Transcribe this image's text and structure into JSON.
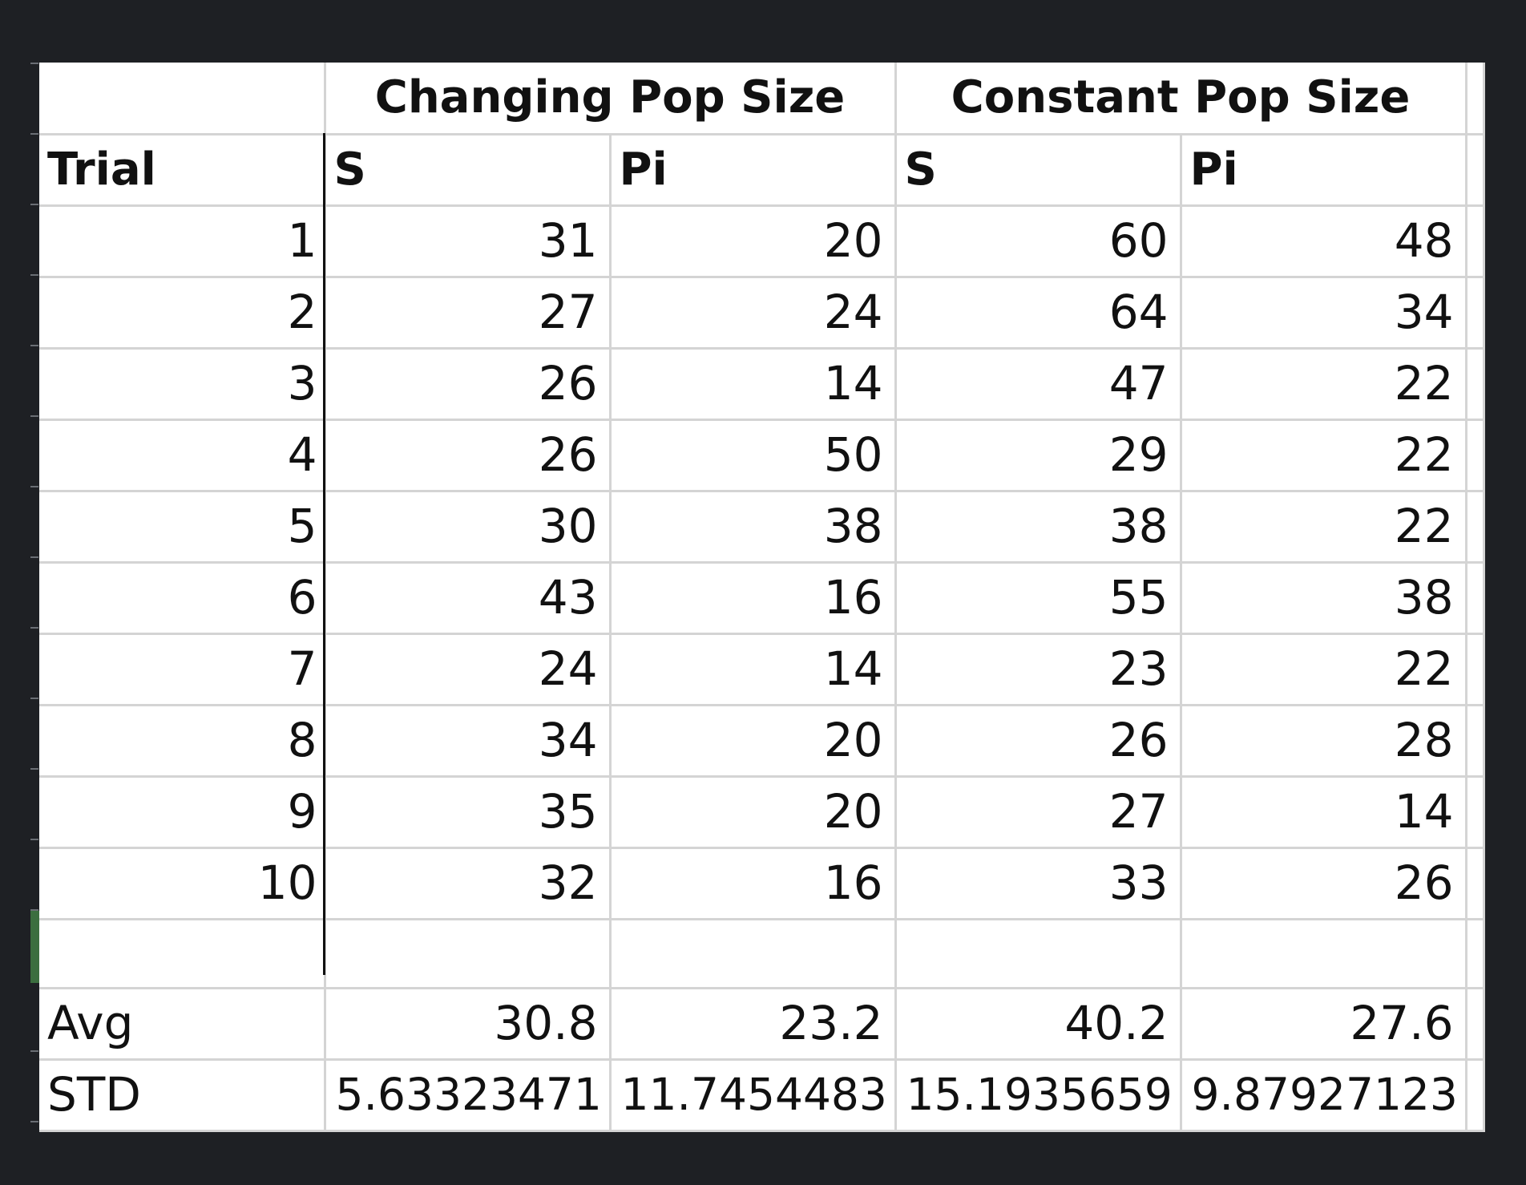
{
  "table": {
    "group_headers": [
      "Changing Pop Size",
      "Constant Pop Size"
    ],
    "column_headers": [
      "Trial",
      "S",
      "Pi",
      "S",
      "Pi"
    ],
    "rows": [
      [
        "1",
        "31",
        "20",
        "60",
        "48"
      ],
      [
        "2",
        "27",
        "24",
        "64",
        "34"
      ],
      [
        "3",
        "26",
        "14",
        "47",
        "22"
      ],
      [
        "4",
        "26",
        "50",
        "29",
        "22"
      ],
      [
        "5",
        "30",
        "38",
        "38",
        "22"
      ],
      [
        "6",
        "43",
        "16",
        "55",
        "38"
      ],
      [
        "7",
        "24",
        "14",
        "23",
        "22"
      ],
      [
        "8",
        "34",
        "20",
        "26",
        "28"
      ],
      [
        "9",
        "35",
        "20",
        "27",
        "14"
      ],
      [
        "10",
        "32",
        "16",
        "33",
        "26"
      ]
    ],
    "summary": [
      [
        "Avg",
        "30.8",
        "23.2",
        "40.2",
        "27.6"
      ],
      [
        "STD",
        "5.63323471",
        "11.7454483",
        "15.1935659",
        "9.87927123"
      ]
    ]
  }
}
